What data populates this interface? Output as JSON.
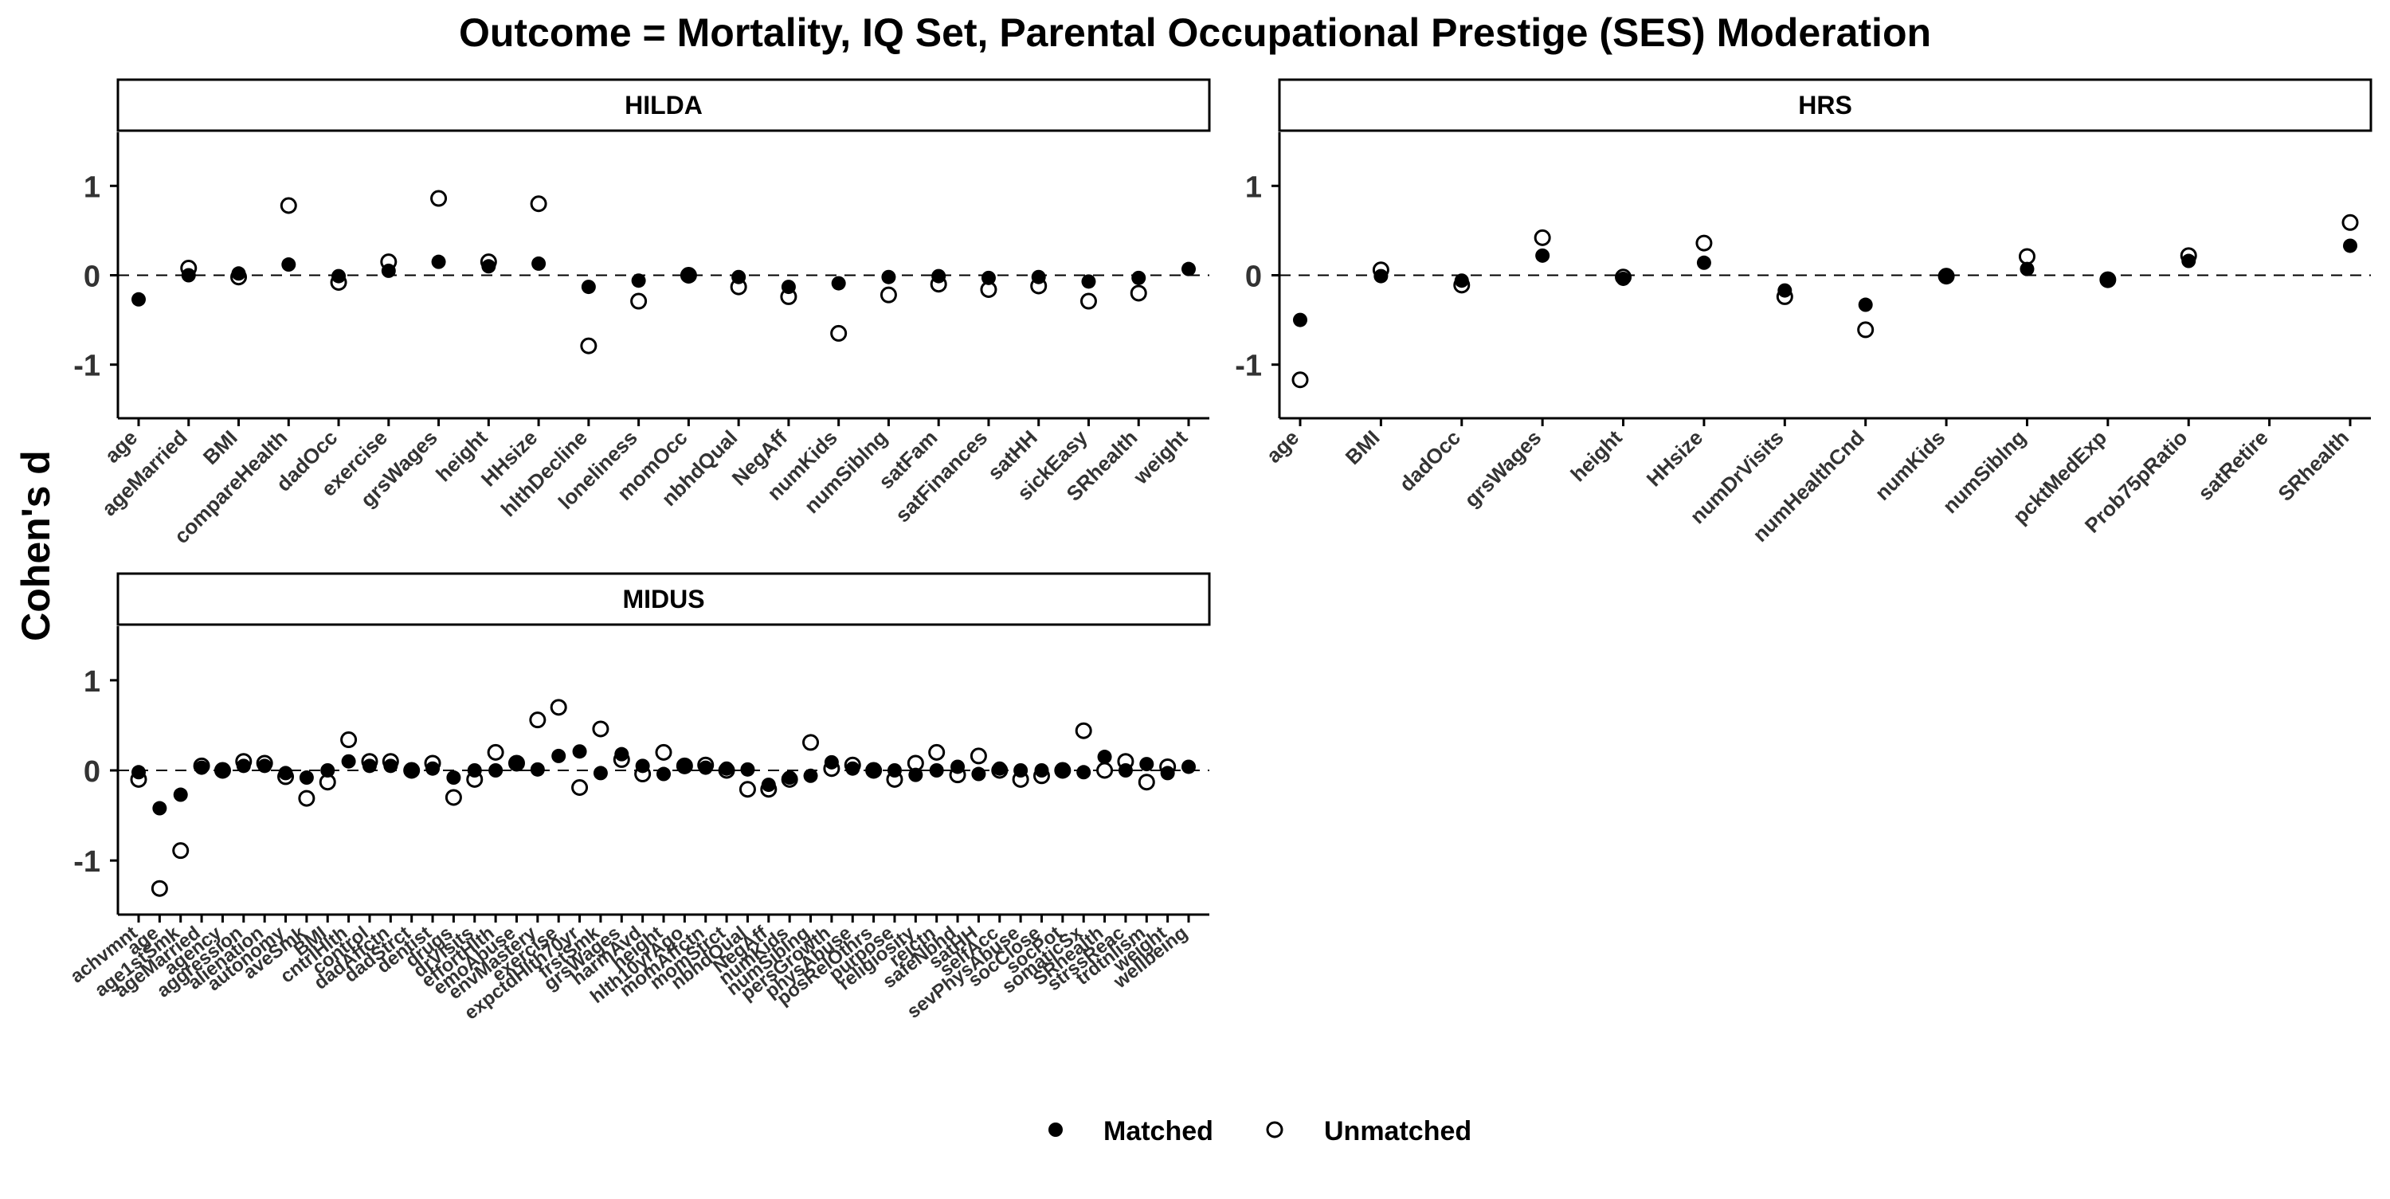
{
  "title": "Outcome = Mortality, IQ Set, Parental Occupational Prestige (SES) Moderation",
  "ylabel": "Cohen's d",
  "legend": {
    "position": "bottom",
    "items": [
      {
        "label": "Matched",
        "marker": "filled-circle"
      },
      {
        "label": "Unmatched",
        "marker": "open-circle"
      }
    ]
  },
  "colors": {
    "points": "#000000",
    "frame": "#000000",
    "background": "#ffffff"
  },
  "chart_data": [
    {
      "type": "scatter",
      "panel": "HILDA",
      "ylim": [
        -1.6,
        1.6
      ],
      "yticks": [
        -1,
        0,
        1
      ],
      "reference_line": 0,
      "categories": [
        "age",
        "ageMarried",
        "BMI",
        "compareHealth",
        "dadOcc",
        "exercise",
        "grsWages",
        "height",
        "HHsize",
        "hlthDecline",
        "loneliness",
        "momOcc",
        "nbhdQual",
        "NegAff",
        "numKids",
        "numSiblng",
        "satFam",
        "satFinances",
        "satHH",
        "sickEasy",
        "SRhealth",
        "weight"
      ],
      "series": [
        {
          "name": "Matched",
          "values": [
            -0.27,
            0.0,
            0.02,
            0.12,
            -0.01,
            0.05,
            0.15,
            0.1,
            0.13,
            -0.13,
            -0.06,
            0.01,
            -0.02,
            -0.13,
            -0.09,
            -0.02,
            -0.01,
            -0.03,
            -0.02,
            -0.07,
            -0.03,
            0.07
          ]
        },
        {
          "name": "Unmatched",
          "values": [
            null,
            0.08,
            -0.02,
            0.78,
            -0.08,
            0.15,
            0.86,
            0.15,
            0.8,
            -0.79,
            -0.29,
            0.0,
            -0.13,
            -0.24,
            -0.65,
            -0.22,
            -0.1,
            -0.16,
            -0.12,
            -0.29,
            -0.2,
            null
          ]
        }
      ]
    },
    {
      "type": "scatter",
      "panel": "HRS",
      "ylim": [
        -1.6,
        1.6
      ],
      "yticks": [
        -1,
        0,
        1
      ],
      "reference_line": 0,
      "categories": [
        "age",
        "BMI",
        "dadOcc",
        "grsWages",
        "height",
        "HHsize",
        "numDrVisits",
        "numHealthCnd",
        "numKids",
        "numSiblng",
        "pcktMedExp",
        "Prob75pRatio",
        "satRetire",
        "SRhealth"
      ],
      "series": [
        {
          "name": "Matched",
          "values": [
            -0.5,
            -0.01,
            -0.06,
            0.22,
            -0.04,
            0.14,
            -0.17,
            -0.33,
            -0.01,
            0.07,
            -0.06,
            0.16,
            null,
            0.33
          ]
        },
        {
          "name": "Unmatched",
          "values": [
            -1.17,
            0.06,
            -0.11,
            0.42,
            -0.02,
            0.36,
            -0.24,
            -0.61,
            -0.01,
            0.21,
            -0.05,
            0.22,
            null,
            0.59
          ]
        }
      ]
    },
    {
      "type": "scatter",
      "panel": "MIDUS",
      "ylim": [
        -1.6,
        1.6
      ],
      "yticks": [
        -1,
        0,
        1
      ],
      "reference_line": 0,
      "categories": [
        "achvmnt",
        "age",
        "age1stSmk",
        "ageMarried",
        "agency",
        "aggression",
        "alienation",
        "autonomy",
        "aveSmk",
        "BMI",
        "cntrlHlth",
        "control",
        "dadAffctn",
        "dadStrct",
        "dentist",
        "drugs",
        "drVisits",
        "effortHlth",
        "emoAbuse",
        "envMastery",
        "exercise",
        "expctdHlth70yr",
        "frstSmk",
        "grsWages",
        "harmAvd",
        "height",
        "hlth10yrAgo",
        "momAffctn",
        "momStrct",
        "nbhdQual",
        "NegAff",
        "numKids",
        "numSiblng",
        "persGrowth",
        "physAbuse",
        "posRelOthrs",
        "purpose",
        "religiosity",
        "rejctn",
        "safeNbhd",
        "satHH",
        "selfAcc",
        "sevPhysAbuse",
        "socClose",
        "socPot",
        "somaticSx",
        "SRhealth",
        "strssReac",
        "trdtnlism",
        "weight",
        "wellbeing"
      ],
      "series": [
        {
          "name": "Matched",
          "values": [
            -0.02,
            -0.42,
            -0.27,
            0.03,
            0.0,
            0.05,
            0.05,
            -0.03,
            -0.08,
            0.0,
            0.1,
            0.05,
            0.05,
            0.0,
            0.02,
            -0.08,
            0.0,
            0.0,
            0.07,
            0.01,
            0.16,
            0.21,
            -0.03,
            0.18,
            0.05,
            -0.04,
            0.05,
            0.03,
            0.02,
            0.01,
            -0.16,
            -0.08,
            -0.06,
            0.09,
            0.02,
            0.01,
            0.0,
            -0.05,
            0.0,
            0.04,
            -0.04,
            0.02,
            0.0,
            0.0,
            0.0,
            -0.02,
            0.15,
            0.0,
            0.07,
            -0.03,
            0.04
          ]
        },
        {
          "name": "Unmatched",
          "values": [
            -0.1,
            -1.31,
            -0.89,
            0.05,
            0.0,
            0.1,
            0.08,
            -0.07,
            -0.31,
            -0.13,
            0.34,
            0.1,
            0.1,
            0.0,
            0.08,
            -0.3,
            -0.1,
            0.2,
            0.08,
            0.56,
            0.7,
            -0.19,
            0.46,
            0.12,
            -0.04,
            0.2,
            0.05,
            0.06,
            0.0,
            -0.21,
            -0.21,
            -0.1,
            0.31,
            0.02,
            0.06,
            0.0,
            -0.1,
            0.08,
            0.2,
            -0.05,
            0.16,
            0.0,
            -0.1,
            -0.06,
            0.0,
            0.44,
            0.0,
            0.1,
            -0.13,
            0.04,
            null
          ]
        }
      ]
    }
  ]
}
